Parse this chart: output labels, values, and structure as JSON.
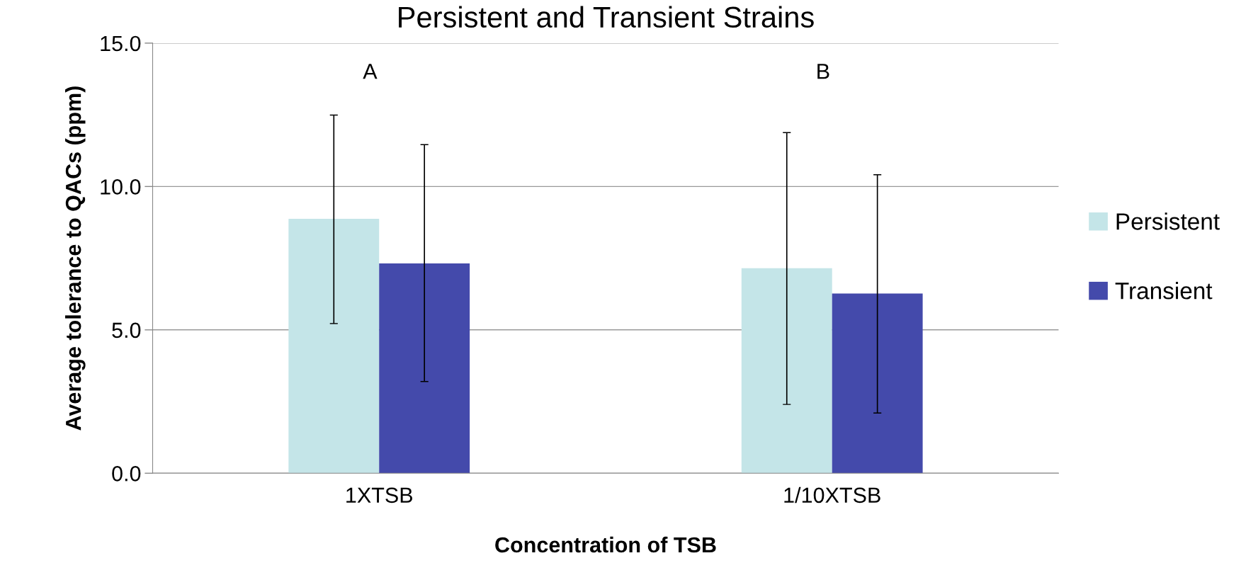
{
  "chart_data": {
    "type": "bar",
    "title": "Persistent and Transient Strains",
    "xlabel": "Concentration of TSB",
    "ylabel": "Average tolerance to QACs (ppm)",
    "categories": [
      "1XTSB",
      "1/10XTSB"
    ],
    "series": [
      {
        "name": "Persistent",
        "color": "#c4e5e8",
        "values": [
          8.87,
          7.15
        ],
        "errors": [
          [
            5.22,
            12.49
          ],
          [
            2.4,
            11.88
          ]
        ]
      },
      {
        "name": "Transient",
        "color": "#444aab",
        "values": [
          7.32,
          6.27
        ],
        "errors": [
          [
            3.2,
            11.46
          ],
          [
            2.1,
            10.41
          ]
        ]
      }
    ],
    "ylim": [
      0,
      15
    ],
    "yticks": [
      {
        "value": 0,
        "label": "0.0"
      },
      {
        "value": 5,
        "label": "5.0"
      },
      {
        "value": 10,
        "label": "10.0"
      },
      {
        "value": 15,
        "label": "15.0"
      }
    ],
    "grid": "y",
    "legend": "right",
    "annotations": [
      "A",
      "B"
    ]
  }
}
